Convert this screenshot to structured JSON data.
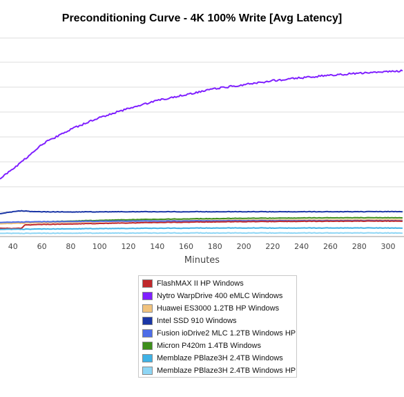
{
  "chart_data": {
    "type": "line",
    "title": "Preconditioning Curve - 4K 100% Write [Avg Latency]",
    "xlabel": "Minutes",
    "ylabel": "",
    "xlim": [
      31,
      311
    ],
    "ylim": [
      0,
      100
    ],
    "x_ticks": [
      40,
      60,
      80,
      100,
      120,
      140,
      160,
      180,
      200,
      220,
      240,
      260,
      280,
      300
    ],
    "grid": "horizontal",
    "legend_position": "bottom",
    "series": [
      {
        "name": "FlashMAX II HP Windows",
        "color": "#c0282b",
        "points": [
          [
            31,
            4.2
          ],
          [
            40,
            4.0
          ],
          [
            46,
            4.2
          ],
          [
            48,
            5.8
          ],
          [
            60,
            6.1
          ],
          [
            100,
            6.6
          ],
          [
            140,
            7.1
          ],
          [
            180,
            7.4
          ],
          [
            220,
            7.6
          ],
          [
            260,
            7.7
          ],
          [
            310,
            7.8
          ]
        ]
      },
      {
        "name": "Nytro WarpDrive 400 eMLC Windows",
        "color": "#7f1fff",
        "points": [
          [
            31,
            29.0
          ],
          [
            40,
            34.0
          ],
          [
            50,
            40.0
          ],
          [
            60,
            46.5
          ],
          [
            80,
            54.0
          ],
          [
            100,
            60.0
          ],
          [
            120,
            64.5
          ],
          [
            140,
            68.5
          ],
          [
            160,
            71.5
          ],
          [
            180,
            74.5
          ],
          [
            200,
            76.5
          ],
          [
            220,
            78.5
          ],
          [
            240,
            80.0
          ],
          [
            260,
            81.3
          ],
          [
            280,
            82.2
          ],
          [
            300,
            83.1
          ],
          [
            310,
            83.5
          ]
        ]
      },
      {
        "name": "Huawei ES3000 1.2TB HP Windows",
        "color": "#f1c37d",
        "points": [
          [
            31,
            6.4
          ],
          [
            60,
            7.0
          ],
          [
            100,
            7.5
          ],
          [
            150,
            8.0
          ],
          [
            200,
            8.3
          ],
          [
            250,
            8.4
          ],
          [
            310,
            8.5
          ]
        ]
      },
      {
        "name": "Intel SSD 910 Windows",
        "color": "#1a36a6",
        "points": [
          [
            31,
            11.5
          ],
          [
            40,
            12.5
          ],
          [
            46,
            13.0
          ],
          [
            55,
            12.5
          ],
          [
            80,
            12.4
          ],
          [
            120,
            12.5
          ],
          [
            160,
            12.5
          ],
          [
            200,
            12.5
          ],
          [
            240,
            12.5
          ],
          [
            280,
            12.5
          ],
          [
            310,
            12.6
          ]
        ]
      },
      {
        "name": "Fusion ioDrive2 MLC 1.2TB Windows HP",
        "color": "#4d6de8",
        "points": [
          [
            31,
            7.1
          ],
          [
            50,
            7.4
          ],
          [
            80,
            7.6
          ],
          [
            120,
            7.8
          ],
          [
            160,
            7.9
          ],
          [
            200,
            8.0
          ],
          [
            260,
            8.0
          ],
          [
            310,
            8.0
          ]
        ]
      },
      {
        "name": "Micron P420m 1.4TB Windows",
        "color": "#3e8f1c",
        "points": [
          [
            31,
            6.9
          ],
          [
            50,
            7.2
          ],
          [
            80,
            7.8
          ],
          [
            120,
            8.5
          ],
          [
            160,
            8.9
          ],
          [
            200,
            9.2
          ],
          [
            250,
            9.4
          ],
          [
            310,
            9.5
          ]
        ]
      },
      {
        "name": "Memblaze PBlaze3H 2.4TB Windows",
        "color": "#3fb2e6",
        "points": [
          [
            31,
            3.6
          ],
          [
            60,
            3.8
          ],
          [
            100,
            4.0
          ],
          [
            140,
            4.2
          ],
          [
            180,
            4.3
          ],
          [
            240,
            4.3
          ],
          [
            310,
            4.3
          ]
        ]
      },
      {
        "name": "Memblaze PBlaze3H 2.4TB Windows HP",
        "color": "#8ed6f5",
        "points": [
          [
            31,
            1.6
          ],
          [
            80,
            1.7
          ],
          [
            150,
            1.8
          ],
          [
            230,
            1.8
          ],
          [
            310,
            1.8
          ]
        ]
      }
    ]
  }
}
